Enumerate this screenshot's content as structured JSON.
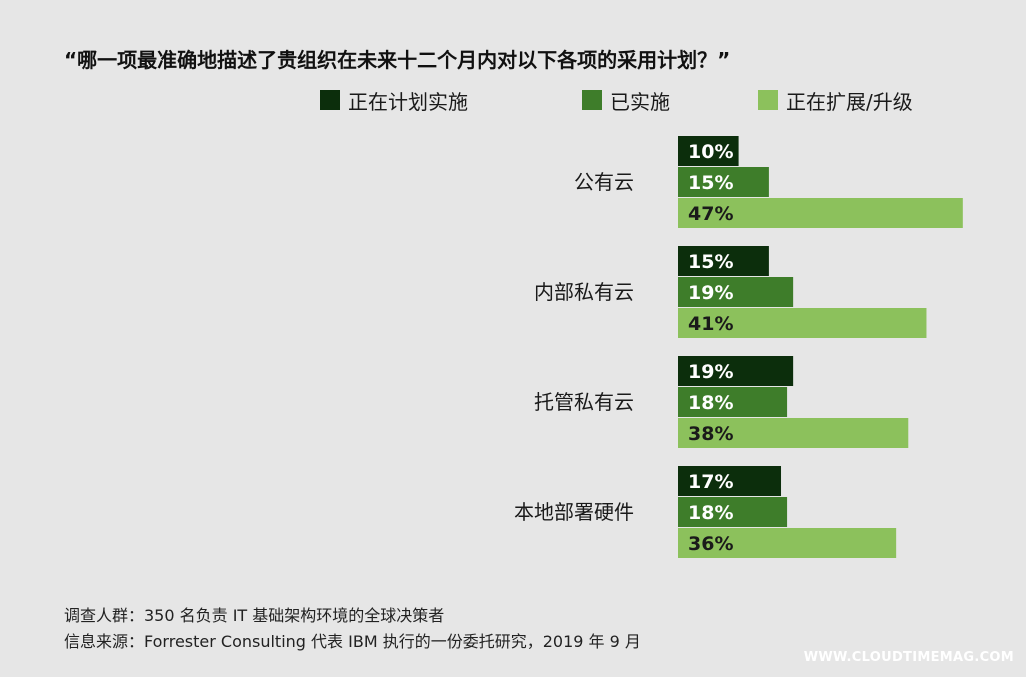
{
  "chart_data": {
    "type": "bar",
    "orientation": "horizontal",
    "title": "“哪一项最准确地描述了贵组织在未来十二个月内对以下各项的采用计划？”",
    "categories": [
      "公有云",
      "内部私有云",
      "托管私有云",
      "本地部署硬件"
    ],
    "series": [
      {
        "name": "正在计划实施",
        "color": "#0c2e0c",
        "values": [
          10,
          15,
          19,
          17
        ]
      },
      {
        "name": "已实施",
        "color": "#3e7d2a",
        "values": [
          15,
          19,
          18,
          18
        ]
      },
      {
        "name": "正在扩展/升级",
        "color": "#8cc15c",
        "values": [
          47,
          41,
          38,
          36
        ]
      }
    ],
    "value_suffix": "%",
    "legend_position": "top",
    "grid": false
  },
  "footer": {
    "survey": "调查人群：350 名负责 IT 基础架构环境的全球决策者",
    "source": "信息来源：Forrester Consulting 代表 IBM 执行的一份委托研究，2019 年 9 月"
  },
  "watermark": "WWW.CLOUDTIMEMAG.COM"
}
